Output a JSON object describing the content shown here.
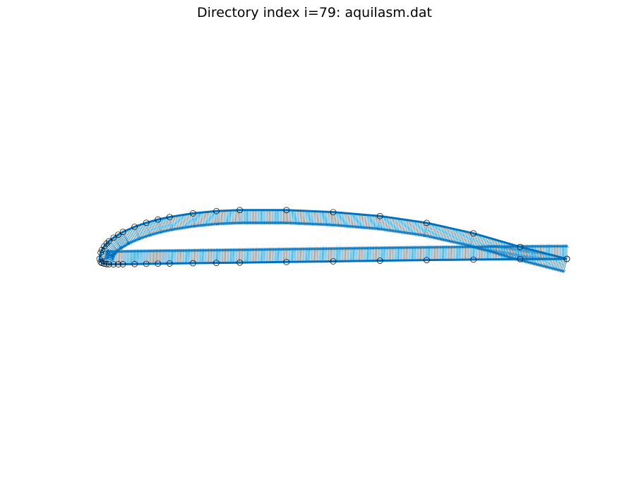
{
  "chart_data": {
    "type": "scatter",
    "title": "Directory index i=79: aquilasm.dat",
    "xlabel": "",
    "ylabel": "",
    "axes_visible": false,
    "grid": false,
    "aspect": "equal",
    "xlim": [
      -0.02,
      1.02
    ],
    "colors": {
      "curve": "#0072BD",
      "normals": "#0072BD",
      "markers": "#000000"
    },
    "series": [
      {
        "name": "",
        "role": "airfoil-surface",
        "x": [
          1.0,
          0.9,
          0.8,
          0.7,
          0.6,
          0.5,
          0.4,
          0.3,
          0.25,
          0.2,
          0.15,
          0.125,
          0.1,
          0.075,
          0.05,
          0.04,
          0.03,
          0.02,
          0.015,
          0.01,
          0.005,
          0.0025,
          0.0,
          0.0025,
          0.005,
          0.01,
          0.015,
          0.02,
          0.03,
          0.04,
          0.05,
          0.075,
          0.1,
          0.125,
          0.15,
          0.2,
          0.25,
          0.3,
          0.4,
          0.5,
          0.6,
          0.7,
          0.8,
          0.9,
          1.0
        ],
        "y": [
          0.0,
          0.0257,
          0.0548,
          0.0772,
          0.0918,
          0.1002,
          0.1046,
          0.1046,
          0.1025,
          0.0976,
          0.0898,
          0.0844,
          0.0774,
          0.0688,
          0.0578,
          0.0518,
          0.0456,
          0.0378,
          0.0329,
          0.0271,
          0.0193,
          0.0135,
          0.0,
          -0.0064,
          -0.0085,
          -0.0101,
          -0.0111,
          -0.0114,
          -0.0116,
          -0.0115,
          -0.0113,
          -0.0109,
          -0.0105,
          -0.0101,
          -0.0098,
          -0.0091,
          -0.0085,
          -0.0079,
          -0.0065,
          -0.0052,
          -0.0038,
          -0.0025,
          -0.0014,
          -0.0005,
          0.0
        ]
      }
    ],
    "normals": {
      "style": "quiver",
      "description_none": ""
    }
  }
}
